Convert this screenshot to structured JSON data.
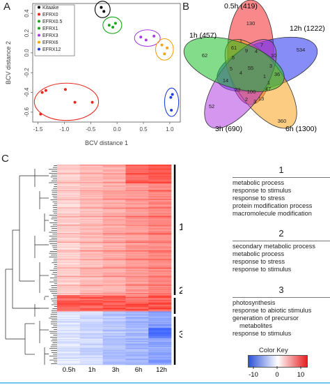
{
  "panels": {
    "a": "A",
    "b": "B",
    "c": "C"
  },
  "pcoa": {
    "xlabel": "BCV distance 1",
    "ylabel": "BCV distance 2",
    "xticks": [
      "-1.5",
      "-1.0",
      "-0.5",
      "0.0",
      "0.5",
      "1.0"
    ],
    "yticks": [
      "-0.6",
      "-0.4",
      "-0.2",
      "0.0",
      "0.2",
      "0.4"
    ],
    "legend": [
      {
        "label": "Kitaake",
        "color": "#000000"
      },
      {
        "label": "EFRX0",
        "color": "#e8281e"
      },
      {
        "label": "EFRX0.5",
        "color": "#1aa61a"
      },
      {
        "label": "EFRX1",
        "color": "#1aa61a"
      },
      {
        "label": "EFRX3",
        "color": "#a93ce0"
      },
      {
        "label": "EFRX6",
        "color": "#f4a30a"
      },
      {
        "label": "EFRX12",
        "color": "#1f3fd9"
      }
    ]
  },
  "chart_data": {
    "type": "scatter",
    "xlabel": "BCV distance 1",
    "ylabel": "BCV distance 2",
    "xlim": [
      -1.6,
      1.2
    ],
    "ylim": [
      -0.7,
      0.5
    ],
    "series": [
      {
        "name": "Kitaake",
        "color": "#000000",
        "points": [
          [
            -0.3,
            0.46
          ],
          [
            -0.25,
            0.42
          ]
        ]
      },
      {
        "name": "EFRX0",
        "color": "#e8281e",
        "points": [
          [
            -1.45,
            -0.62
          ],
          [
            -1.35,
            -0.38
          ],
          [
            -1.42,
            -0.4
          ],
          [
            -0.98,
            -0.37
          ],
          [
            -0.8,
            -0.5
          ],
          [
            -0.47,
            -0.5
          ]
        ]
      },
      {
        "name": "EFRX0.5",
        "color": "#1aa61a",
        "points": [
          [
            -0.15,
            0.28
          ],
          [
            -0.08,
            0.26
          ],
          [
            -0.03,
            0.3
          ]
        ]
      },
      {
        "name": "EFRX3",
        "color": "#a93ce0",
        "points": [
          [
            0.45,
            0.16
          ],
          [
            0.55,
            0.13
          ],
          [
            0.7,
            0.17
          ]
        ]
      },
      {
        "name": "EFRX6",
        "color": "#f4a30a",
        "points": [
          [
            0.85,
            0.08
          ],
          [
            0.95,
            0.05
          ],
          [
            0.9,
            -0.01
          ]
        ]
      },
      {
        "name": "EFRX12",
        "color": "#1f3fd9",
        "points": [
          [
            1.02,
            -0.45
          ],
          [
            1.05,
            -0.42
          ],
          [
            1.03,
            -0.58
          ]
        ]
      }
    ]
  },
  "venn": {
    "sets": [
      {
        "label": "0.5h (419)",
        "color": "#f4272b"
      },
      {
        "label": "12h (1222)",
        "color": "#2230f0"
      },
      {
        "label": "6h (1300)",
        "color": "#f7a21a"
      },
      {
        "label": "3h (690)",
        "color": "#b13fe0"
      },
      {
        "label": "1h (457)",
        "color": "#1cbf2a"
      }
    ],
    "regions": [
      "130",
      "534",
      "360",
      "52",
      "62",
      "55",
      "100",
      "47",
      "61",
      "14",
      "36",
      "7",
      "10",
      "3",
      "4",
      "9",
      "1",
      "5",
      "13",
      "3",
      "2",
      "5",
      "1",
      "23",
      "1",
      "4"
    ]
  },
  "heatmap": {
    "timepoints": [
      "0.5h",
      "1h",
      "3h",
      "6h",
      "12h"
    ],
    "clusters": [
      {
        "num": "1",
        "terms": [
          "metabolic process",
          "response to stimulus",
          "response to stress",
          "protein modification process",
          "macromolecule modification"
        ]
      },
      {
        "num": "2",
        "terms": [
          "secondary metabolic process",
          "metabolic process",
          "response to stress",
          "response to stimulus"
        ]
      },
      {
        "num": "3",
        "terms": [
          "photosynthesis",
          "response to abiotic stimulus",
          "generation of precursor",
          "metabolites",
          "response to stimulus"
        ]
      }
    ],
    "color_key": {
      "title": "Color Key",
      "ticks": [
        "-10",
        "0",
        "10"
      ],
      "low": "#2c52d8",
      "mid": "#ffffff",
      "high": "#e62020"
    }
  }
}
